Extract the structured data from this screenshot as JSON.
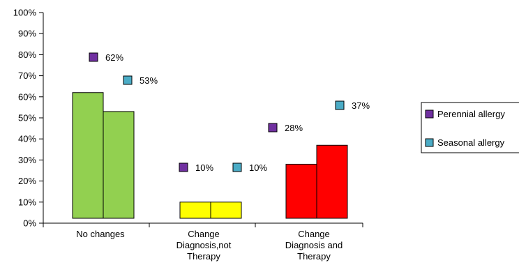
{
  "chart_data": {
    "type": "bar",
    "title": "",
    "xlabel": "",
    "ylabel": "",
    "ylim": [
      0,
      100
    ],
    "yticks": [
      "0%",
      "10%",
      "20%",
      "30%",
      "40%",
      "50%",
      "60%",
      "70%",
      "80%",
      "90%",
      "100%"
    ],
    "categories": [
      [
        "No changes"
      ],
      [
        "Change",
        "Diagnosis,not",
        "Therapy"
      ],
      [
        "Change",
        "Diagnosis and",
        "Therapy"
      ]
    ],
    "category_colors": [
      "#92d050",
      "#ffff00",
      "#ff0000"
    ],
    "series": [
      {
        "name": "Perennial allergy",
        "marker_color": "#7030a0",
        "values": [
          62,
          10,
          28
        ],
        "labels": [
          "62%",
          "10%",
          "28%"
        ]
      },
      {
        "name": "Seasonal allergy",
        "marker_color": "#4bacc6",
        "values": [
          53,
          10,
          37
        ],
        "labels": [
          "53%",
          "10%",
          "37%"
        ]
      }
    ],
    "legend_position": "right",
    "grid": false
  }
}
